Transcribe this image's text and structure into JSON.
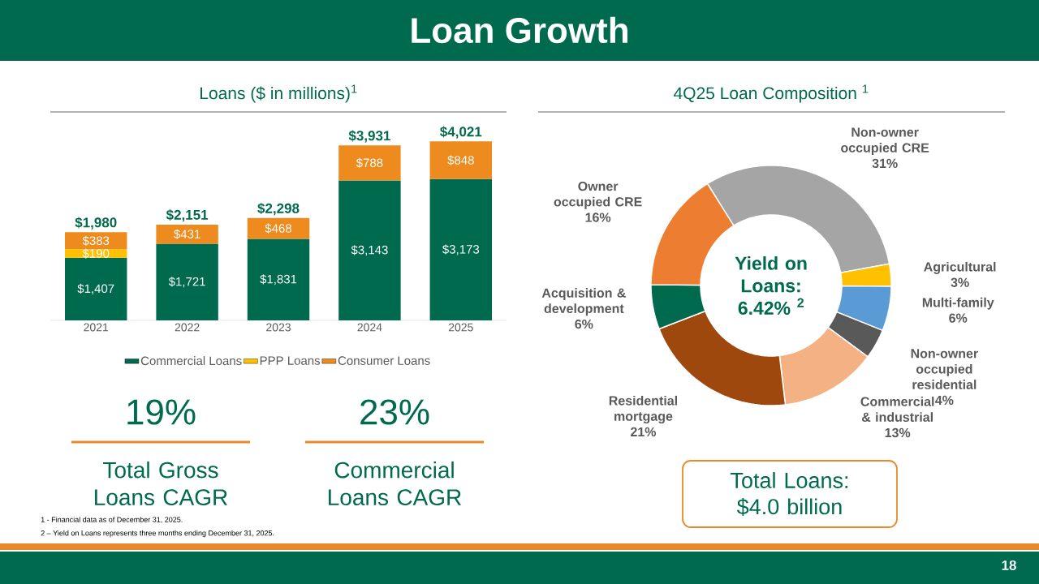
{
  "chart_data": [
    {
      "type": "bar",
      "title": "Loans ($ in millions)$^{1}$",
      "stacked": true,
      "legend": "bottom",
      "categories": [
        "2021",
        "2022",
        "2023",
        "2024",
        "2025"
      ],
      "series": [
        {
          "name": "Commercial Loans",
          "color": "#006a4e",
          "values": [
            1407,
            1721,
            1831,
            3143,
            3173
          ],
          "value_labels": [
            "$1,407",
            "$1,721",
            "$1,831",
            "$3,143",
            "$3,173"
          ]
        },
        {
          "name": "PPP Loans",
          "color": "#ffc000",
          "values": [
            190,
            null,
            null,
            null,
            null
          ],
          "value_labels": [
            "$190",
            null,
            null,
            null,
            null
          ]
        },
        {
          "name": "Consumer Loans",
          "color": "#ed8b1f",
          "values": [
            383,
            431,
            468,
            788,
            848
          ],
          "value_labels": [
            "$383",
            "$431",
            "$468",
            "$788",
            "$848"
          ]
        }
      ],
      "totals": [
        "$1,980",
        "$2,151",
        "$2,298",
        "$3,931",
        "$4,021"
      ],
      "annotations": [
        "Loan Growth",
        "1 -  Financial data as of December 31, 2025.",
        "2 – Yield on Loans represents three months ending December 31, 2025.",
        "18"
      ]
    },
    {
      "type": "donut",
      "title": "4Q25 Loan Composition $^{1}$",
      "categories": [
        "Non-owner occupied CRE",
        "Agricultural",
        "Multi-family",
        "Non-owner occupied residential",
        "Commercial & industrial",
        "Residential mortgage",
        "Acquisition & development",
        "Owner occupied CRE"
      ],
      "values": [
        31,
        3,
        6,
        4,
        13,
        21,
        6,
        16
      ],
      "value_labels": [
        "31%",
        "3%",
        "6%",
        "4%",
        "13%",
        "21%",
        "6%",
        "16%"
      ],
      "colors": [
        "#a5a5a5",
        "#ffc000",
        "#5b9bd5",
        "#595959",
        "#f4b183",
        "#9e480e",
        "#006a4e",
        "#ed7d31"
      ],
      "annotations": [
        "Yield on Loans: 6.42% $^{2}$",
        "Total Loans: $4.0 billion"
      ]
    },
    {
      "type": "other",
      "annotations": [
        "19%",
        "Total Gross Loans CAGR",
        "23%",
        "Commercial Loans CAGR"
      ]
    }
  ]
}
